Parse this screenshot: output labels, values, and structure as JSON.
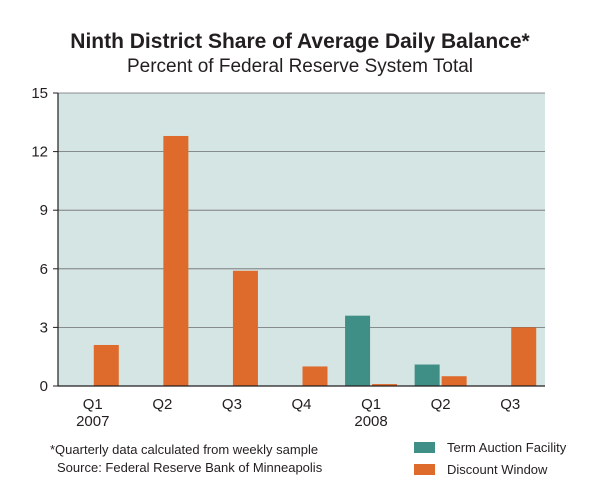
{
  "title": "Ninth District Share of Average Daily Balance*",
  "subtitle": "Percent of Federal Reserve System Total",
  "footnote": "*Quarterly data calculated from weekly sample",
  "source": "Source: Federal Reserve Bank of Minneapolis",
  "colors": {
    "plot_background": "#d5e5e3",
    "term_auction_facility": "#3f8f86",
    "discount_window": "#de6a2b"
  },
  "chart_data": {
    "type": "bar",
    "categories": [
      "Q1\n2007",
      "Q2",
      "Q3",
      "Q4",
      "Q1\n2008",
      "Q2",
      "Q3"
    ],
    "series": [
      {
        "name": "Term Auction Facility",
        "values": [
          0,
          0,
          0,
          0,
          3.6,
          1.1,
          0
        ]
      },
      {
        "name": "Discount Window",
        "values": [
          2.1,
          12.8,
          5.9,
          1.0,
          0.1,
          0.5,
          3.0
        ]
      }
    ],
    "ylim": [
      0,
      15
    ],
    "yticks": [
      0,
      3,
      6,
      9,
      12,
      15
    ],
    "grid": true,
    "legend_position": "bottom-right"
  }
}
